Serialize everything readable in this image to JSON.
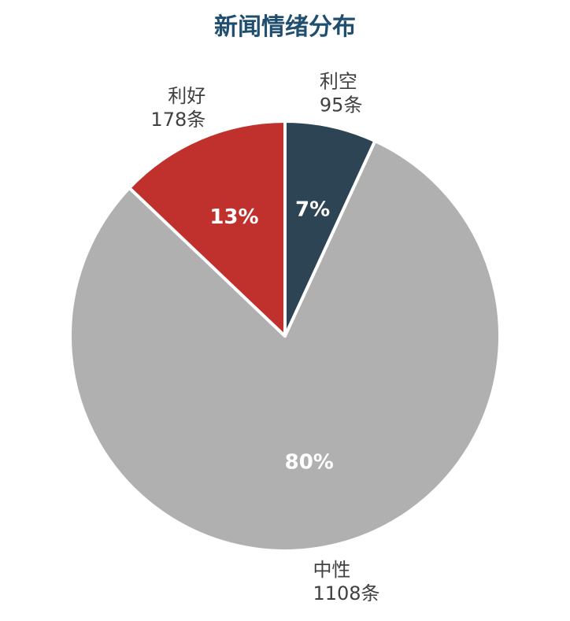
{
  "chart_data": {
    "type": "pie",
    "title": "新闻情绪分布",
    "start_angle_deg": 0,
    "direction": "clockwise",
    "slices": [
      {
        "label": "利空",
        "value": 95,
        "value_text": "95条",
        "percent_text": "7%",
        "color": "#2d4454"
      },
      {
        "label": "中性",
        "value": 1108,
        "value_text": "1108条",
        "percent_text": "80%",
        "color": "#b0b0b0"
      },
      {
        "label": "利好",
        "value": 178,
        "value_text": "178条",
        "percent_text": "13%",
        "color": "#c0302d"
      }
    ]
  },
  "colors": {
    "title": "#1f4e6e",
    "outer_label": "#404040",
    "inner_label": "#ffffff",
    "slice_border": "#ffffff"
  }
}
